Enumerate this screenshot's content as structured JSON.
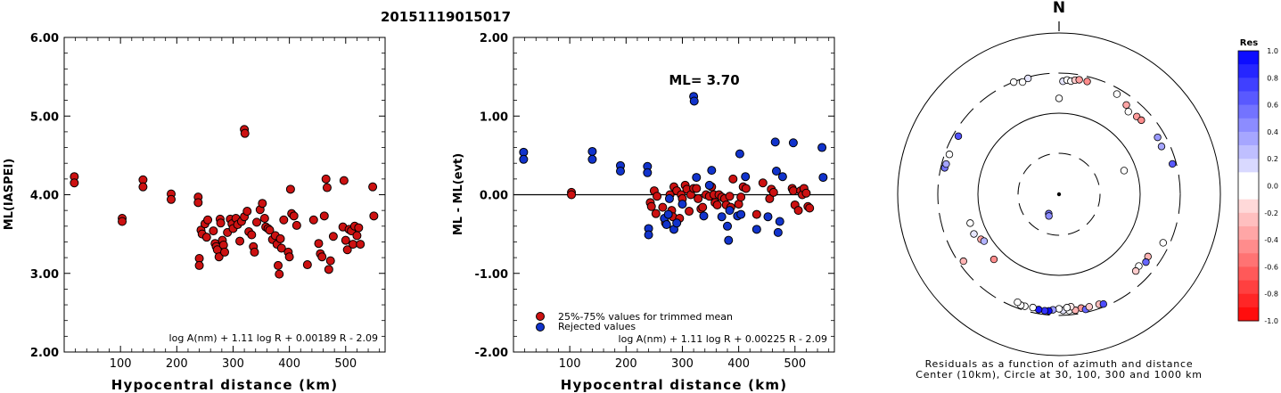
{
  "page_title": "20151119015017",
  "colors": {
    "trimmed": "#cc1111",
    "rejected": "#1133cc",
    "outline": "#000000"
  },
  "chart_data": [
    {
      "type": "scatter",
      "ylabel": "ML(IASPEI)",
      "xlabel": "Hypocentral distance (km)",
      "xlim": [
        0,
        570
      ],
      "ylim": [
        2.0,
        6.0
      ],
      "x_ticks": [
        100,
        200,
        300,
        400,
        500
      ],
      "y_ticks": [
        "2.00",
        "3.00",
        "4.00",
        "5.00",
        "6.00"
      ],
      "formula": "log A(nm) + 1.11 log R + 0.00189 R - 2.09",
      "series": [
        {
          "points": [
            [
              18,
              4.23
            ],
            [
              18,
              4.15
            ],
            [
              103,
              3.7
            ],
            [
              103,
              3.66
            ],
            [
              140,
              4.19
            ],
            [
              140,
              4.1
            ],
            [
              190,
              4.01
            ],
            [
              190,
              3.94
            ],
            [
              238,
              3.97
            ],
            [
              238,
              3.9
            ],
            [
              240,
              3.19
            ],
            [
              240,
              3.1
            ],
            [
              243,
              3.55
            ],
            [
              245,
              3.5
            ],
            [
              250,
              3.63
            ],
            [
              253,
              3.46
            ],
            [
              255,
              3.68
            ],
            [
              265,
              3.54
            ],
            [
              268,
              3.38
            ],
            [
              270,
              3.34
            ],
            [
              272,
              3.3
            ],
            [
              275,
              3.21
            ],
            [
              277,
              3.69
            ],
            [
              278,
              3.64
            ],
            [
              281,
              3.42
            ],
            [
              283,
              3.36
            ],
            [
              285,
              3.27
            ],
            [
              290,
              3.52
            ],
            [
              295,
              3.69
            ],
            [
              298,
              3.63
            ],
            [
              300,
              3.57
            ],
            [
              305,
              3.7
            ],
            [
              308,
              3.62
            ],
            [
              312,
              3.41
            ],
            [
              315,
              3.66
            ],
            [
              320,
              3.72
            ],
            [
              320,
              4.83
            ],
            [
              321,
              4.78
            ],
            [
              325,
              3.79
            ],
            [
              328,
              3.53
            ],
            [
              333,
              3.49
            ],
            [
              336,
              3.34
            ],
            [
              338,
              3.27
            ],
            [
              342,
              3.65
            ],
            [
              348,
              3.81
            ],
            [
              352,
              3.89
            ],
            [
              356,
              3.7
            ],
            [
              358,
              3.59
            ],
            [
              362,
              3.57
            ],
            [
              365,
              3.55
            ],
            [
              370,
              3.43
            ],
            [
              375,
              3.48
            ],
            [
              378,
              3.37
            ],
            [
              380,
              3.1
            ],
            [
              382,
              2.99
            ],
            [
              384,
              3.44
            ],
            [
              386,
              3.32
            ],
            [
              390,
              3.68
            ],
            [
              398,
              3.27
            ],
            [
              400,
              3.21
            ],
            [
              402,
              4.07
            ],
            [
              404,
              3.76
            ],
            [
              408,
              3.73
            ],
            [
              413,
              3.61
            ],
            [
              432,
              3.11
            ],
            [
              443,
              3.68
            ],
            [
              452,
              3.38
            ],
            [
              455,
              3.25
            ],
            [
              458,
              3.21
            ],
            [
              462,
              3.73
            ],
            [
              465,
              4.2
            ],
            [
              467,
              4.09
            ],
            [
              470,
              3.05
            ],
            [
              473,
              3.16
            ],
            [
              478,
              3.47
            ],
            [
              495,
              3.59
            ],
            [
              497,
              4.18
            ],
            [
              500,
              3.42
            ],
            [
              503,
              3.3
            ],
            [
              506,
              3.56
            ],
            [
              510,
              3.54
            ],
            [
              513,
              3.37
            ],
            [
              516,
              3.6
            ],
            [
              520,
              3.48
            ],
            [
              523,
              3.58
            ],
            [
              526,
              3.37
            ],
            [
              548,
              4.1
            ],
            [
              550,
              3.73
            ]
          ]
        }
      ]
    },
    {
      "type": "scatter",
      "ylabel": "ML - ML(evt)",
      "xlabel": "Hypocentral distance (km)",
      "xlim": [
        0,
        570
      ],
      "ylim": [
        -2.0,
        2.0
      ],
      "x_ticks": [
        100,
        200,
        300,
        400,
        500
      ],
      "y_ticks": [
        "-2.00",
        "-1.00",
        "0.00",
        "1.00",
        "2.00"
      ],
      "annotation": "ML= 3.70",
      "formula": "log A(nm) + 1.11 log R + 0.00225 R - 2.09",
      "series": [
        {
          "name": "25%-75% values for trimmed mean",
          "color": "#cc1111",
          "points": [
            [
              103,
              0.03
            ],
            [
              103,
              0.0
            ],
            [
              243,
              -0.1
            ],
            [
              245,
              -0.15
            ],
            [
              250,
              0.05
            ],
            [
              253,
              -0.24
            ],
            [
              255,
              -0.02
            ],
            [
              265,
              -0.16
            ],
            [
              270,
              -0.36
            ],
            [
              278,
              0.0
            ],
            [
              281,
              -0.2
            ],
            [
              283,
              -0.28
            ],
            [
              285,
              0.1
            ],
            [
              290,
              0.05
            ],
            [
              295,
              -0.3
            ],
            [
              298,
              0.0
            ],
            [
              300,
              -0.05
            ],
            [
              305,
              0.12
            ],
            [
              308,
              0.07
            ],
            [
              312,
              -0.21
            ],
            [
              315,
              0.0
            ],
            [
              320,
              0.08
            ],
            [
              325,
              0.08
            ],
            [
              328,
              -0.05
            ],
            [
              333,
              -0.18
            ],
            [
              336,
              -0.16
            ],
            [
              342,
              0.0
            ],
            [
              348,
              -0.02
            ],
            [
              352,
              0.1
            ],
            [
              356,
              0.0
            ],
            [
              358,
              -0.1
            ],
            [
              362,
              -0.13
            ],
            [
              365,
              0.0
            ],
            [
              370,
              -0.03
            ],
            [
              375,
              -0.05
            ],
            [
              378,
              -0.13
            ],
            [
              384,
              -0.02
            ],
            [
              386,
              -0.16
            ],
            [
              390,
              0.2
            ],
            [
              400,
              -0.12
            ],
            [
              404,
              -0.03
            ],
            [
              408,
              0.1
            ],
            [
              413,
              0.08
            ],
            [
              432,
              -0.25
            ],
            [
              443,
              0.15
            ],
            [
              455,
              -0.05
            ],
            [
              458,
              0.07
            ],
            [
              462,
              0.03
            ],
            [
              495,
              0.08
            ],
            [
              497,
              0.05
            ],
            [
              500,
              -0.13
            ],
            [
              506,
              -0.2
            ],
            [
              510,
              0.05
            ],
            [
              513,
              0.0
            ],
            [
              516,
              0.08
            ],
            [
              520,
              0.02
            ],
            [
              523,
              -0.15
            ],
            [
              526,
              -0.17
            ]
          ]
        },
        {
          "name": "Rejected values",
          "color": "#1133cc",
          "points": [
            [
              18,
              0.54
            ],
            [
              18,
              0.45
            ],
            [
              140,
              0.55
            ],
            [
              140,
              0.45
            ],
            [
              190,
              0.37
            ],
            [
              190,
              0.3
            ],
            [
              238,
              0.36
            ],
            [
              238,
              0.28
            ],
            [
              240,
              -0.43
            ],
            [
              240,
              -0.51
            ],
            [
              268,
              -0.3
            ],
            [
              272,
              -0.38
            ],
            [
              275,
              -0.25
            ],
            [
              277,
              -0.05
            ],
            [
              285,
              -0.44
            ],
            [
              290,
              -0.36
            ],
            [
              300,
              -0.12
            ],
            [
              320,
              1.25
            ],
            [
              321,
              1.19
            ],
            [
              325,
              0.22
            ],
            [
              338,
              -0.27
            ],
            [
              348,
              0.12
            ],
            [
              352,
              0.31
            ],
            [
              370,
              -0.28
            ],
            [
              380,
              -0.4
            ],
            [
              382,
              -0.58
            ],
            [
              384,
              -0.2
            ],
            [
              398,
              -0.27
            ],
            [
              402,
              0.52
            ],
            [
              404,
              -0.25
            ],
            [
              412,
              0.23
            ],
            [
              432,
              -0.44
            ],
            [
              452,
              -0.28
            ],
            [
              465,
              0.67
            ],
            [
              467,
              0.3
            ],
            [
              470,
              -0.48
            ],
            [
              473,
              -0.34
            ],
            [
              478,
              0.23
            ],
            [
              497,
              0.66
            ],
            [
              548,
              0.6
            ],
            [
              550,
              0.22
            ]
          ]
        }
      ]
    },
    {
      "type": "scatter",
      "title": "N",
      "caption_line1": "Residuals as a function of azimuth and distance",
      "caption_line2": "Center (10km), Circle at 30, 100, 300 and 1000 km",
      "colorbar": {
        "title": "Res",
        "ticks": [
          "1.0",
          "0.8",
          "0.6",
          "0.4",
          "0.2",
          "0.0",
          "-0.2",
          "-0.4",
          "-0.6",
          "-0.8",
          "-1.0"
        ]
      },
      "stations": [
        {
          "az": 208,
          "dist": 18,
          "res": 0.54
        },
        {
          "az": 205,
          "dist": 19,
          "res": 0.45
        },
        {
          "az": 2,
          "dist": 240,
          "res": 0.1
        },
        {
          "az": 4,
          "dist": 250,
          "res": 0.05
        },
        {
          "az": 6,
          "dist": 245,
          "res": 0.0
        },
        {
          "az": 8,
          "dist": 255,
          "res": -0.2
        },
        {
          "az": 10,
          "dist": 262,
          "res": -0.38
        },
        {
          "az": 14,
          "dist": 262,
          "res": -0.45
        },
        {
          "az": 345,
          "dist": 290,
          "res": 0.1
        },
        {
          "az": 342,
          "dist": 275,
          "res": -0.05
        },
        {
          "az": 338,
          "dist": 298,
          "res": 0.0
        },
        {
          "az": 0,
          "dist": 150,
          "res": 0.02
        },
        {
          "az": 30,
          "dist": 258,
          "res": -0.03
        },
        {
          "az": 37,
          "dist": 232,
          "res": -0.35
        },
        {
          "az": 40,
          "dist": 208,
          "res": -0.05
        },
        {
          "az": 45,
          "dist": 220,
          "res": -0.4
        },
        {
          "az": 48,
          "dist": 225,
          "res": -0.45
        },
        {
          "az": 70,
          "dist": 70,
          "res": 0.03
        },
        {
          "az": 60,
          "dist": 245,
          "res": 0.4
        },
        {
          "az": 65,
          "dist": 240,
          "res": 0.35
        },
        {
          "az": 75,
          "dist": 270,
          "res": 0.65
        },
        {
          "az": 300,
          "dist": 262,
          "res": 0.68
        },
        {
          "az": 283,
          "dist": 270,
          "res": 0.55
        },
        {
          "az": 285,
          "dist": 266,
          "res": 0.35
        },
        {
          "az": 290,
          "dist": 265,
          "res": 0.0
        },
        {
          "az": 115,
          "dist": 252,
          "res": 0.05
        },
        {
          "az": 125,
          "dist": 212,
          "res": -0.3
        },
        {
          "az": 128,
          "dist": 222,
          "res": 0.6
        },
        {
          "az": 132,
          "dist": 205,
          "res": 0.0
        },
        {
          "az": 135,
          "dist": 212,
          "res": -0.2
        },
        {
          "az": 252,
          "dist": 140,
          "res": 0.0
        },
        {
          "az": 245,
          "dist": 142,
          "res": 0.1
        },
        {
          "az": 240,
          "dist": 128,
          "res": -0.35
        },
        {
          "az": 238,
          "dist": 122,
          "res": 0.3
        },
        {
          "az": 225,
          "dist": 135,
          "res": -0.45
        },
        {
          "az": 235,
          "dist": 265,
          "res": -0.3
        },
        {
          "az": 175,
          "dist": 265,
          "res": 0.0
        },
        {
          "az": 178,
          "dist": 262,
          "res": 0.1
        },
        {
          "az": 180,
          "dist": 250,
          "res": 0.0
        },
        {
          "az": 183,
          "dist": 258,
          "res": 0.4
        },
        {
          "az": 185,
          "dist": 268,
          "res": 0.95
        },
        {
          "az": 187,
          "dist": 270,
          "res": 0.8
        },
        {
          "az": 190,
          "dist": 268,
          "res": 0.9
        },
        {
          "az": 193,
          "dist": 262,
          "res": -0.05
        },
        {
          "az": 169,
          "dist": 260,
          "res": -0.4
        },
        {
          "az": 167,
          "dist": 276,
          "res": 0.6
        },
        {
          "az": 165,
          "dist": 264,
          "res": -0.2
        },
        {
          "az": 172,
          "dist": 268,
          "res": -0.3
        },
        {
          "az": 174,
          "dist": 240,
          "res": -0.1
        },
        {
          "az": 160,
          "dist": 268,
          "res": -0.25
        },
        {
          "az": 158,
          "dist": 278,
          "res": 0.7
        },
        {
          "az": 176,
          "dist": 244,
          "res": 0.0
        },
        {
          "az": 197,
          "dist": 268,
          "res": 0.05
        },
        {
          "az": 199,
          "dist": 270,
          "res": 0.0
        },
        {
          "az": 201,
          "dist": 258,
          "res": 0.0
        }
      ]
    }
  ]
}
